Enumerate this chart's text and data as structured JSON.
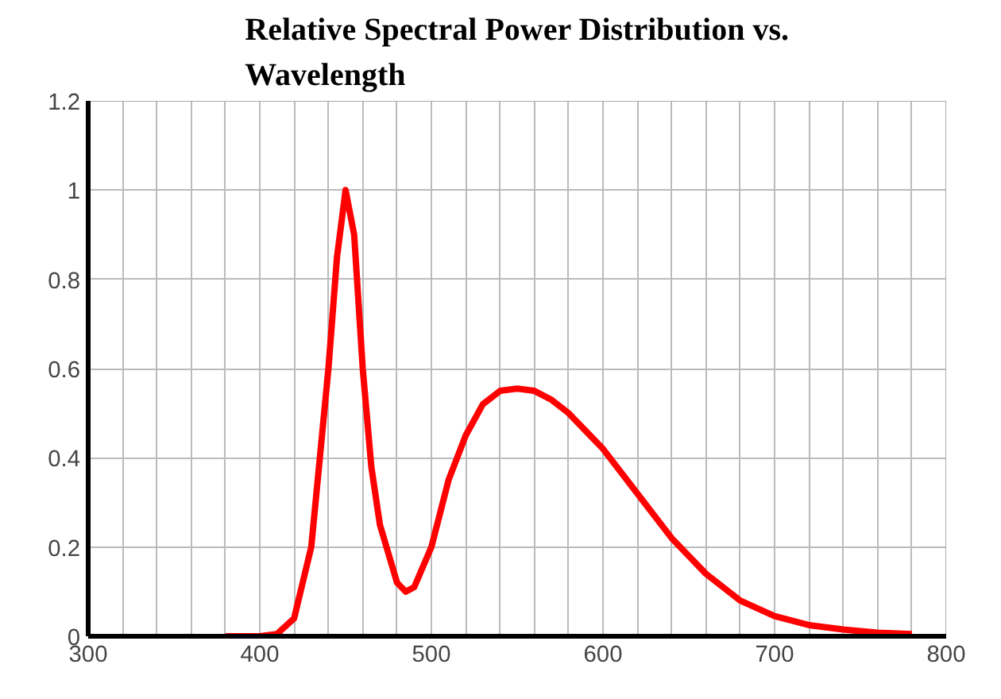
{
  "chart_data": {
    "type": "line",
    "title": "Relative Spectral Power Distribution vs. Wavelength",
    "x": [
      380,
      400,
      410,
      420,
      430,
      440,
      445,
      450,
      455,
      460,
      465,
      470,
      480,
      485,
      490,
      500,
      510,
      520,
      530,
      540,
      550,
      560,
      570,
      580,
      590,
      600,
      620,
      640,
      660,
      680,
      700,
      720,
      740,
      760,
      780
    ],
    "series": [
      {
        "color": "#ff0000",
        "values": [
          0,
          0,
          0.005,
          0.04,
          0.2,
          0.6,
          0.85,
          1.0,
          0.9,
          0.6,
          0.38,
          0.25,
          0.12,
          0.1,
          0.11,
          0.2,
          0.35,
          0.45,
          0.52,
          0.55,
          0.555,
          0.55,
          0.53,
          0.5,
          0.46,
          0.42,
          0.32,
          0.22,
          0.14,
          0.08,
          0.045,
          0.025,
          0.015,
          0.008,
          0.005
        ]
      }
    ],
    "xlim": [
      300,
      800
    ],
    "ylim": [
      0,
      1.2
    ],
    "xticks": [
      300,
      {
        "value": 320,
        "label": null
      },
      {
        "value": 340,
        "label": null
      },
      {
        "value": 360,
        "label": null
      },
      {
        "value": 380,
        "label": null
      },
      400,
      {
        "value": 420,
        "label": null
      },
      {
        "value": 440,
        "label": null
      },
      {
        "value": 460,
        "label": null
      },
      {
        "value": 480,
        "label": null
      },
      500,
      {
        "value": 520,
        "label": null
      },
      {
        "value": 540,
        "label": null
      },
      {
        "value": 560,
        "label": null
      },
      {
        "value": 580,
        "label": null
      },
      600,
      {
        "value": 620,
        "label": null
      },
      {
        "value": 640,
        "label": null
      },
      {
        "value": 660,
        "label": null
      },
      {
        "value": 680,
        "label": null
      },
      700,
      {
        "value": 720,
        "label": null
      },
      {
        "value": 740,
        "label": null
      },
      {
        "value": 760,
        "label": null
      },
      {
        "value": 780,
        "label": null
      },
      800
    ],
    "yticks": [
      0,
      0.2,
      0.4,
      0.6,
      0.8,
      1,
      1.2
    ],
    "grid": true,
    "marker": "none",
    "line_style": "solid"
  }
}
